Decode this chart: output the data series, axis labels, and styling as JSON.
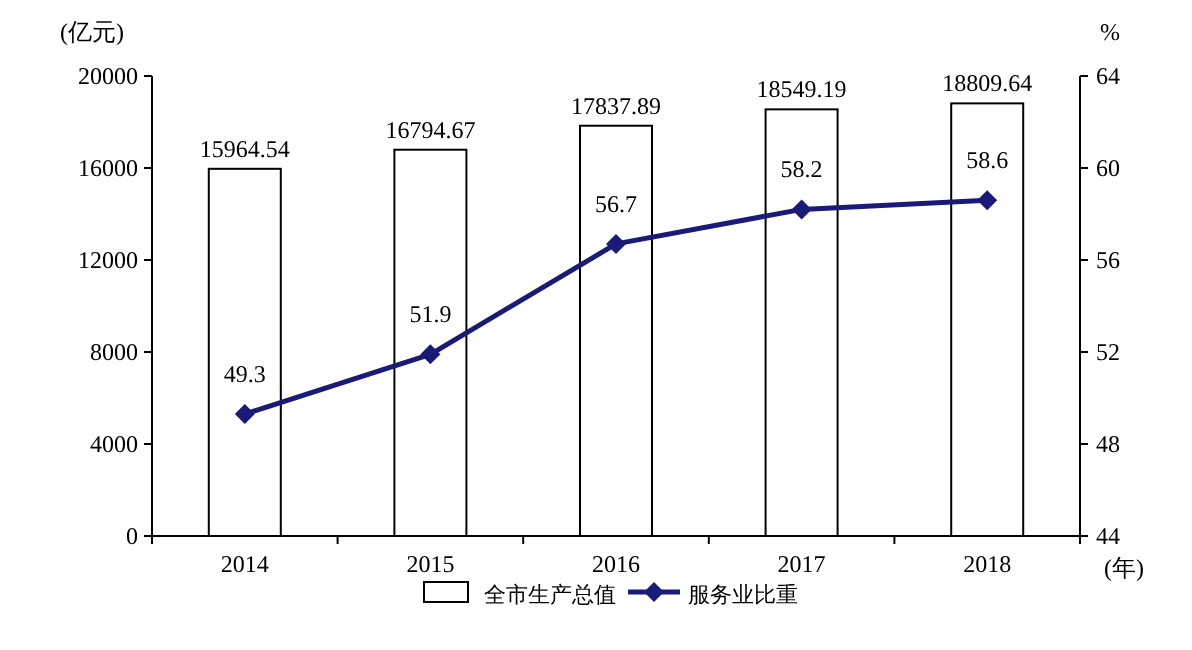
{
  "chart_data": {
    "type": "bar",
    "ylabel": "(亿元)",
    "y2label": "%",
    "xlabel": "(年)",
    "categories": [
      "2014",
      "2015",
      "2016",
      "2017",
      "2018"
    ],
    "series": [
      {
        "name": "全市生产总值",
        "color": "#ffffff",
        "values": [
          15964.54,
          16794.67,
          17837.89,
          18549.19,
          18809.64
        ]
      },
      {
        "name": "服务业比重",
        "type": "line",
        "axis": "y2",
        "color": "#1a1a78",
        "marker": "diamond",
        "values": [
          49.3,
          51.9,
          56.7,
          58.2,
          58.6
        ]
      }
    ],
    "ylim": [
      0,
      20000
    ],
    "yticks": [
      0,
      4000,
      8000,
      12000,
      16000,
      20000
    ],
    "y2lim": [
      44,
      64
    ],
    "y2ticks": [
      44,
      48,
      52,
      56,
      60,
      64
    ],
    "data_labels": true,
    "legend": "bottom",
    "grid": false
  }
}
